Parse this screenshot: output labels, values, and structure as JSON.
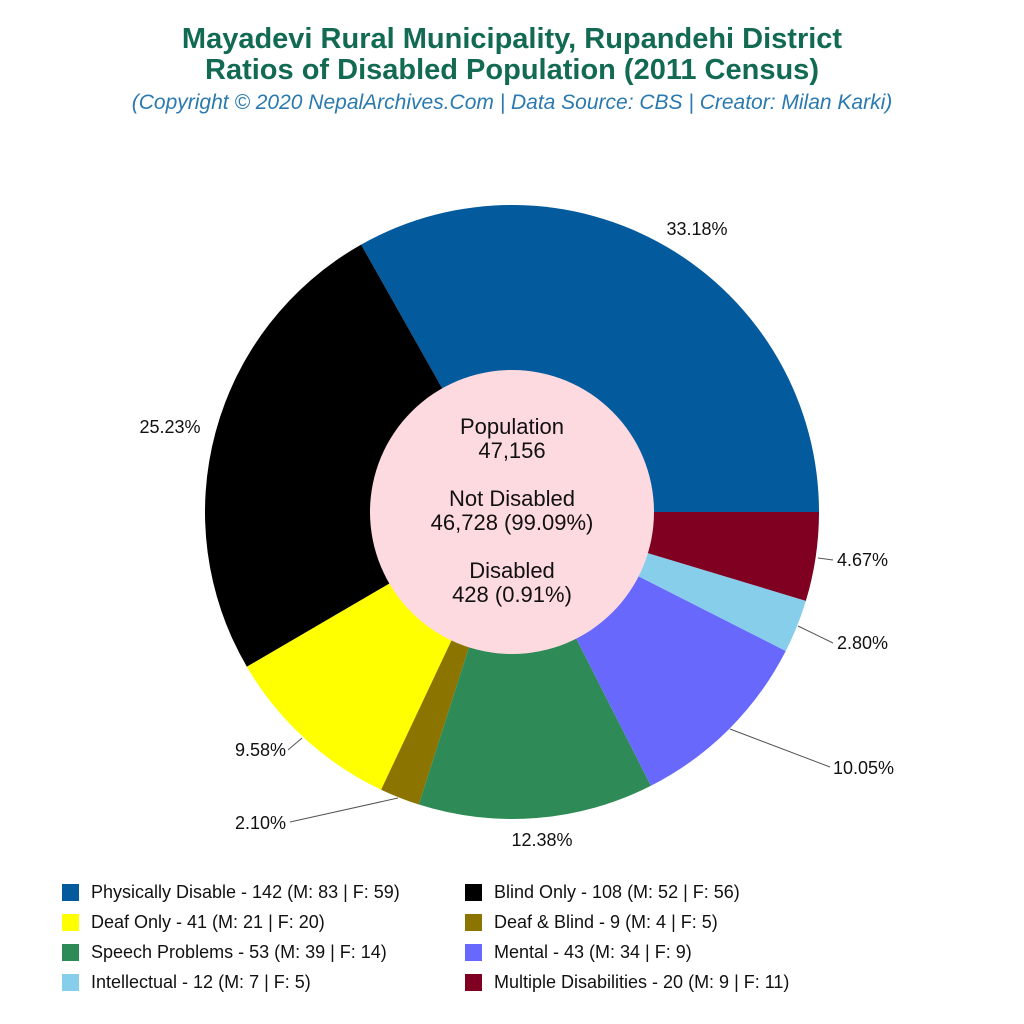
{
  "header": {
    "title_line1": "Mayadevi Rural Municipality, Rupandehi District",
    "title_line2": "Ratios of Disabled Population (2011 Census)",
    "subtitle": "(Copyright © 2020 NepalArchives.Com | Data Source: CBS | Creator: Milan Karki)"
  },
  "center": {
    "population_label": "Population",
    "population_value": "47,156",
    "not_disabled_label": "Not Disabled",
    "not_disabled_value": "46,728 (99.09%)",
    "disabled_label": "Disabled",
    "disabled_value": "428 (0.91%)",
    "color": "#fdd9e0"
  },
  "legend": [
    {
      "text": "Physically Disable - 142 (M: 83 | F: 59)",
      "color": "#035a9c"
    },
    {
      "text": "Blind Only - 108 (M: 52 | F: 56)",
      "color": "#000000"
    },
    {
      "text": "Deaf Only - 41 (M: 21 | F: 20)",
      "color": "#ffff00"
    },
    {
      "text": "Deaf & Blind - 9 (M: 4 | F: 5)",
      "color": "#8b7500"
    },
    {
      "text": "Speech Problems - 53 (M: 39 | F: 14)",
      "color": "#2e8b57"
    },
    {
      "text": "Mental - 43 (M: 34 | F: 9)",
      "color": "#6868fc"
    },
    {
      "text": "Intellectual - 12 (M: 7 | F: 5)",
      "color": "#87ceeb"
    },
    {
      "text": "Multiple Disabilities - 20 (M: 9 | F: 11)",
      "color": "#7f0020"
    }
  ],
  "chart_data": {
    "type": "pie",
    "variant": "donut",
    "title": "Mayadevi Rural Municipality, Rupandehi District - Ratios of Disabled Population (2011 Census)",
    "categories": [
      "Physically Disable",
      "Blind Only",
      "Deaf Only",
      "Deaf & Blind",
      "Speech Problems",
      "Mental",
      "Intellectual",
      "Multiple Disabilities"
    ],
    "values": [
      142,
      108,
      41,
      9,
      53,
      43,
      12,
      20
    ],
    "male": [
      83,
      52,
      21,
      4,
      39,
      34,
      7,
      9
    ],
    "female": [
      59,
      56,
      20,
      5,
      14,
      9,
      5,
      11
    ],
    "percent_labels": [
      "33.18%",
      "25.23%",
      "9.58%",
      "2.10%",
      "12.38%",
      "10.05%",
      "2.80%",
      "4.67%"
    ],
    "colors": [
      "#035a9c",
      "#000000",
      "#ffff00",
      "#8b7500",
      "#2e8b57",
      "#6868fc",
      "#87ceeb",
      "#7f0020"
    ],
    "total_population": 47156,
    "not_disabled": 46728,
    "disabled": 428,
    "legend_position": "bottom"
  }
}
